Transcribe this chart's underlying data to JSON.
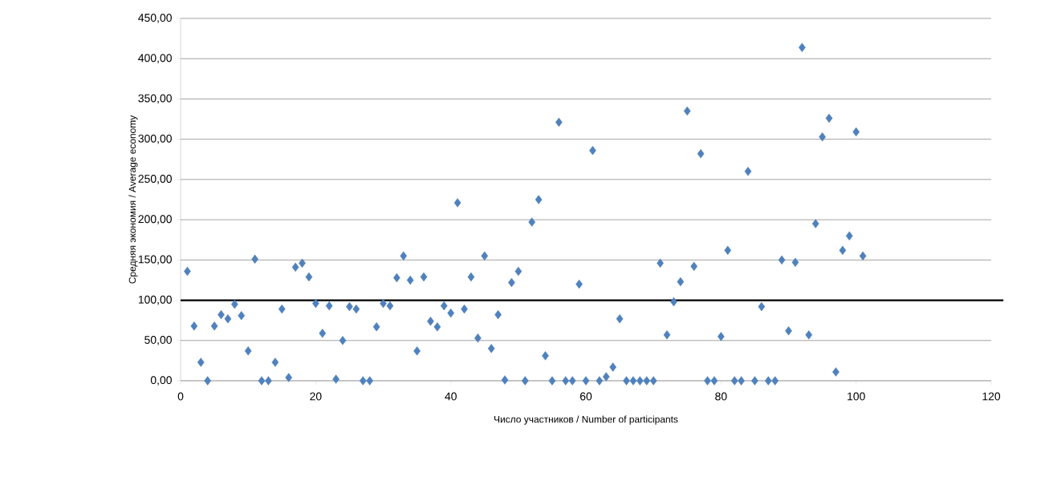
{
  "chart_data": {
    "type": "scatter",
    "xlabel": "Число участников / Number of participants",
    "ylabel": "Средняя экономия / Average economy",
    "x": [
      1,
      2,
      3,
      4,
      5,
      6,
      7,
      8,
      9,
      10,
      11,
      12,
      13,
      14,
      15,
      16,
      17,
      18,
      19,
      20,
      21,
      22,
      23,
      24,
      25,
      26,
      27,
      28,
      29,
      30,
      31,
      32,
      33,
      34,
      35,
      36,
      37,
      38,
      39,
      40,
      41,
      42,
      43,
      44,
      45,
      46,
      47,
      48,
      49,
      50,
      51,
      52,
      53,
      54,
      55,
      56,
      57,
      58,
      59,
      60,
      61,
      62,
      63,
      64,
      65,
      66,
      67,
      68,
      69,
      70,
      71,
      72,
      73,
      74,
      75,
      76,
      77,
      78,
      79,
      80,
      81,
      82,
      83,
      84,
      85,
      86,
      87,
      88,
      89,
      90,
      91,
      92,
      93,
      94,
      95,
      96,
      97,
      98,
      99,
      100,
      101
    ],
    "values": [
      136,
      68,
      23,
      0,
      68,
      82,
      77,
      95,
      81,
      37,
      151,
      0,
      0,
      23,
      89,
      4,
      141,
      146,
      129,
      96,
      59,
      93,
      2,
      50,
      92,
      89,
      0,
      0,
      67,
      96,
      93,
      128,
      155,
      125,
      37,
      129,
      74,
      67,
      93,
      84,
      221,
      89,
      129,
      53,
      155,
      40,
      82,
      1,
      122,
      136,
      0,
      197,
      225,
      31,
      0,
      321,
      0,
      0,
      120,
      0,
      286,
      0,
      5,
      17,
      77,
      0,
      0,
      0,
      0,
      0,
      146,
      57,
      98,
      123,
      335,
      142,
      282,
      0,
      0,
      55,
      162,
      0,
      0,
      260,
      0,
      92,
      0,
      0,
      150,
      62,
      147,
      414,
      57,
      195,
      303,
      326,
      11,
      162,
      180,
      309,
      155
    ],
    "color": "#4f81bd",
    "marker": "diamond",
    "xlim": [
      0,
      120
    ],
    "xticks": [
      0,
      20,
      40,
      60,
      80,
      100,
      120
    ],
    "ylim": [
      0,
      450
    ],
    "yticks": [
      {
        "value": 0,
        "label": "0,00"
      },
      {
        "value": 50,
        "label": "50,00"
      },
      {
        "value": 100,
        "label": "100,00"
      },
      {
        "value": 150,
        "label": "150,00"
      },
      {
        "value": 200,
        "label": "200,00"
      },
      {
        "value": 250,
        "label": "250,00"
      },
      {
        "value": 300,
        "label": "300,00"
      },
      {
        "value": 350,
        "label": "350,00"
      },
      {
        "value": 400,
        "label": "400,00"
      },
      {
        "value": 450,
        "label": "450,00"
      }
    ],
    "grid": "y",
    "ref_lines": [
      {
        "axis": "y",
        "value": 100,
        "color": "#000000"
      }
    ]
  }
}
